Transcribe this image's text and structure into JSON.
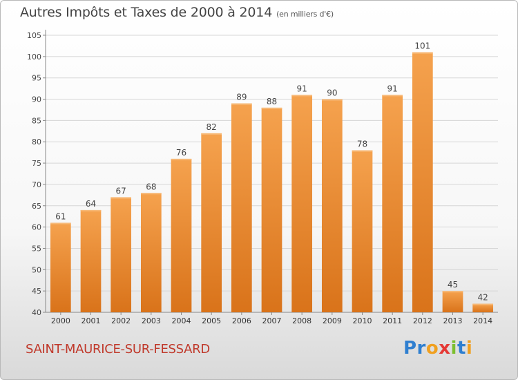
{
  "header": {
    "title": "Autres Impôts et Taxes de 2000 à 2014",
    "unit": "(en milliers d'€)"
  },
  "footer": {
    "commune": "SAINT-MAURICE-SUR-FESSARD",
    "brand_parts": [
      "Pr",
      "o",
      "x",
      "i",
      "t",
      "i"
    ]
  },
  "colors": {
    "bar_light": "#f5a24e",
    "bar_dark": "#d9731a",
    "commune_text": "#c0392b"
  },
  "chart_data": {
    "type": "bar",
    "title": "Autres Impôts et Taxes de 2000 à 2014",
    "categories": [
      "2000",
      "2001",
      "2002",
      "2003",
      "2004",
      "2005",
      "2006",
      "2007",
      "2008",
      "2009",
      "2010",
      "2011",
      "2012",
      "2013",
      "2014"
    ],
    "values": [
      61,
      64,
      67,
      68,
      76,
      82,
      89,
      88,
      91,
      90,
      78,
      91,
      101,
      45,
      42
    ],
    "ylim": [
      40,
      105
    ],
    "yticks": [
      40,
      45,
      50,
      55,
      60,
      65,
      70,
      75,
      80,
      85,
      90,
      95,
      100,
      105
    ],
    "grid": true,
    "legend": "none"
  }
}
